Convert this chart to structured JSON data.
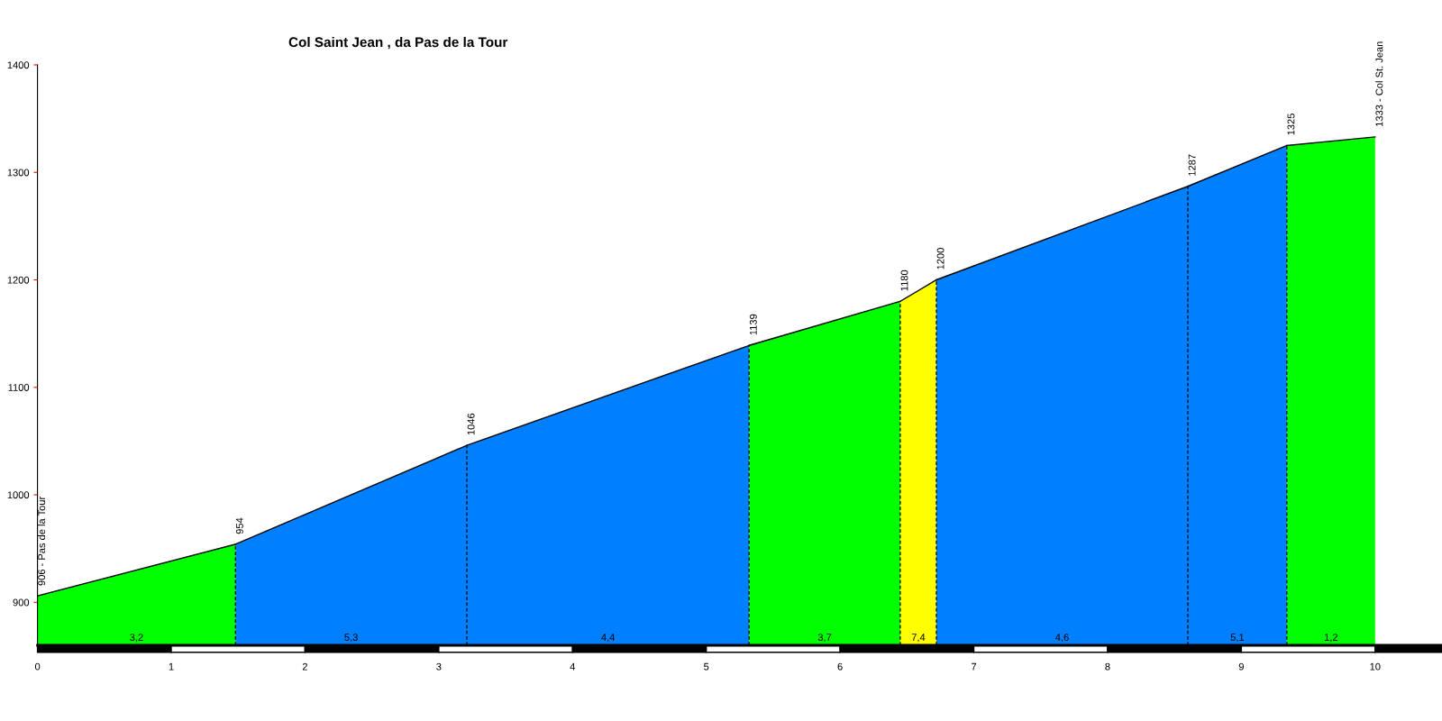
{
  "chart_data": {
    "type": "area",
    "title": "Col Saint Jean , da Pas de la Tour",
    "series": [
      {
        "x": [
          0,
          1.48
        ],
        "values": [
          906,
          954
        ],
        "color": "#00ff00"
      },
      {
        "x": [
          1.48,
          3.21
        ],
        "values": [
          954,
          1046
        ],
        "color": "#0080ff"
      },
      {
        "x": [
          3.21,
          5.32
        ],
        "values": [
          1046,
          1139
        ],
        "color": "#0080ff"
      },
      {
        "x": [
          5.32,
          6.45
        ],
        "values": [
          1139,
          1180
        ],
        "color": "#00ff00"
      },
      {
        "x": [
          6.45,
          6.72
        ],
        "values": [
          1180,
          1200
        ],
        "color": "#ffff00"
      },
      {
        "x": [
          6.72,
          8.6
        ],
        "values": [
          1200,
          1287
        ],
        "color": "#0080ff"
      },
      {
        "x": [
          8.6,
          9.34
        ],
        "values": [
          1287,
          1325
        ],
        "color": "#0080ff"
      },
      {
        "x": [
          9.34,
          10.0
        ],
        "values": [
          1325,
          1333
        ],
        "color": "#00ff00"
      }
    ],
    "xlim": [
      0,
      10.5
    ],
    "xticks": [
      0,
      1,
      2,
      3,
      4,
      5,
      6,
      7,
      8,
      9,
      10
    ],
    "ylim": [
      860,
      1400
    ],
    "yticks": [
      900,
      1000,
      1100,
      1200,
      1300,
      1400
    ],
    "grid": false,
    "legend": false,
    "ref_lines": [
      {
        "axis": "x",
        "value": 1.48,
        "line_style": "dashed"
      },
      {
        "axis": "x",
        "value": 3.21,
        "line_style": "dashed"
      },
      {
        "axis": "x",
        "value": 5.32,
        "line_style": "dashed"
      },
      {
        "axis": "x",
        "value": 6.45,
        "line_style": "dashed"
      },
      {
        "axis": "x",
        "value": 6.72,
        "line_style": "dashed"
      },
      {
        "axis": "x",
        "value": 8.6,
        "line_style": "dashed"
      },
      {
        "axis": "x",
        "value": 9.34,
        "line_style": "dashed"
      }
    ],
    "annotations": [
      {
        "text": "906 - Pas de la Tour",
        "x": 0,
        "y": 906
      },
      {
        "text": "954",
        "x": 1.48,
        "y": 954
      },
      {
        "text": "1046",
        "x": 3.21,
        "y": 1046
      },
      {
        "text": "1139",
        "x": 5.32,
        "y": 1139
      },
      {
        "text": "1180",
        "x": 6.45,
        "y": 1180
      },
      {
        "text": "1200",
        "x": 6.72,
        "y": 1200
      },
      {
        "text": "1287",
        "x": 8.6,
        "y": 1287
      },
      {
        "text": "1325",
        "x": 9.34,
        "y": 1325
      },
      {
        "text": "1333 - Col St. Jean",
        "x": 10.0,
        "y": 1333
      },
      {
        "text": "3,2",
        "x": 0.74,
        "y": 860
      },
      {
        "text": "5,3",
        "x": 2.345,
        "y": 860
      },
      {
        "text": "4,4",
        "x": 4.265,
        "y": 860
      },
      {
        "text": "3,7",
        "x": 5.885,
        "y": 860
      },
      {
        "text": "7,4",
        "x": 6.585,
        "y": 860
      },
      {
        "text": "4,6",
        "x": 7.66,
        "y": 860
      },
      {
        "text": "5,1",
        "x": 8.97,
        "y": 860
      },
      {
        "text": "1,2",
        "x": 9.67,
        "y": 860
      }
    ]
  }
}
